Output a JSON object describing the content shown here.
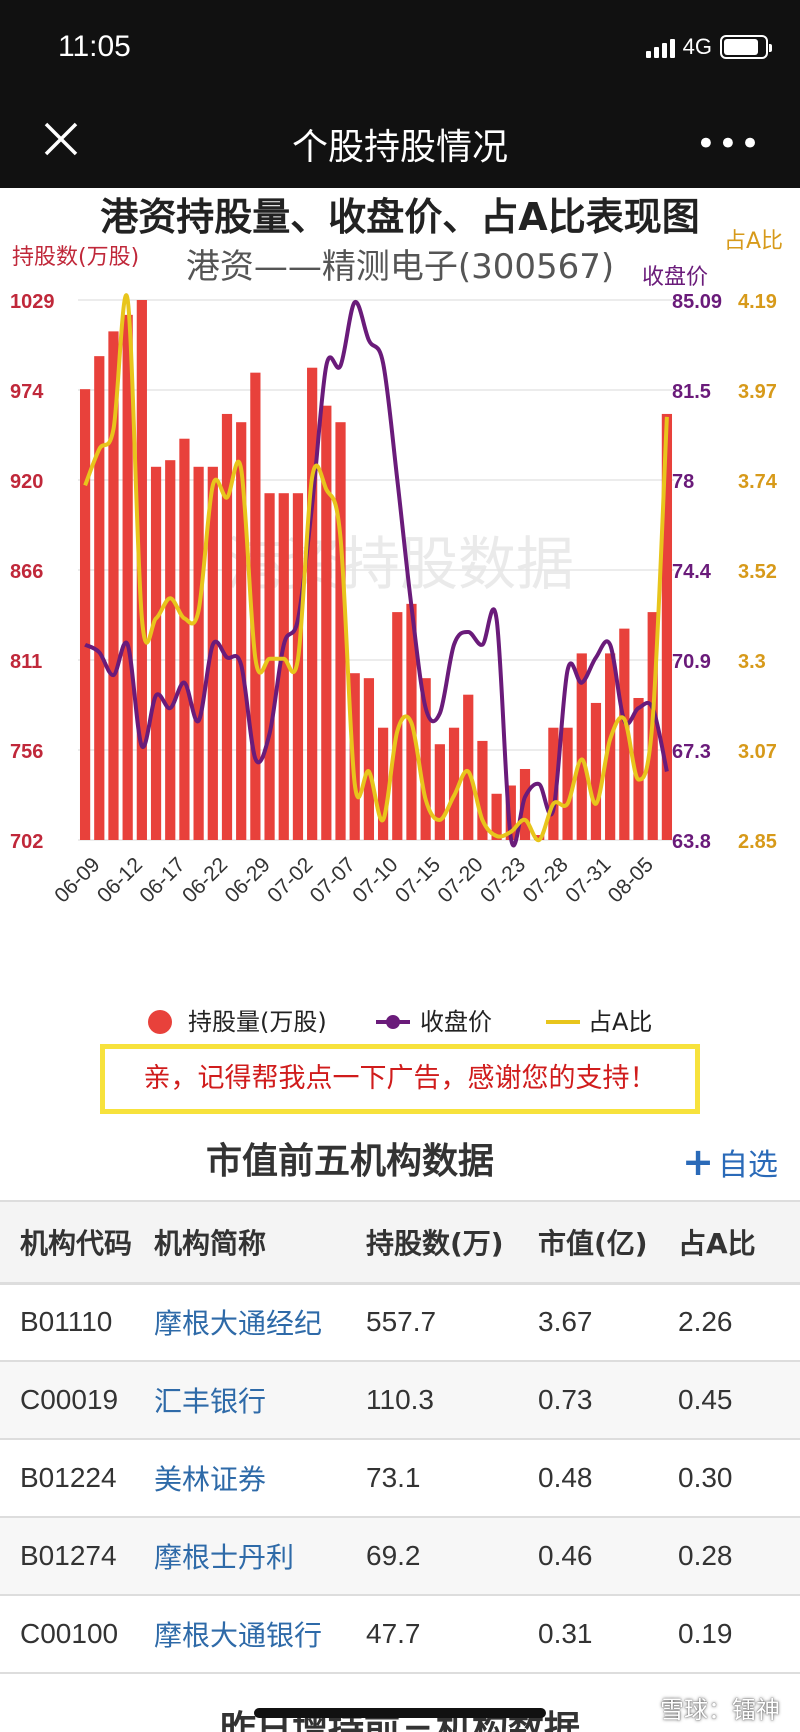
{
  "status_bar": {
    "time": "11:05",
    "network": "4G",
    "battery_level": 0.85
  },
  "nav": {
    "title": "个股持股情况",
    "close_icon": "close-icon",
    "more_icon": "more-icon"
  },
  "chart_data": {
    "type": "bar",
    "title": "港资持股量、收盘价、占A比表现图",
    "subtitle": "港资——精测电子(300567)",
    "watermark": "港资持股数据",
    "left_axis_label": "持股数(万股)",
    "right_axis_label_price": "收盘价",
    "right_axis_label_ratio": "占A比",
    "left_ticks": [
      "1029",
      "974",
      "920",
      "866",
      "811",
      "756",
      "702"
    ],
    "price_ticks": [
      "85.09",
      "81.5",
      "78",
      "74.4",
      "70.9",
      "67.3",
      "63.8"
    ],
    "ratio_ticks": [
      "4.19",
      "3.97",
      "3.74",
      "3.52",
      "3.3",
      "3.07",
      "2.85"
    ],
    "ylim_holding": [
      702,
      1029
    ],
    "ylim_price": [
      63.8,
      85.09
    ],
    "ylim_ratio": [
      2.85,
      4.19
    ],
    "x_tick_labels": [
      "06-09",
      "06-12",
      "06-17",
      "06-22",
      "06-29",
      "07-02",
      "07-07",
      "07-10",
      "07-15",
      "07-20",
      "07-23",
      "07-28",
      "07-31",
      "08-05"
    ],
    "series": [
      {
        "name": "持股量(万股)",
        "color": "#e8413b",
        "values": [
          975,
          995,
          1010,
          1020,
          1029,
          928,
          932,
          945,
          928,
          928,
          960,
          955,
          985,
          912,
          912,
          912,
          988,
          965,
          955,
          803,
          800,
          770,
          840,
          845,
          800,
          760,
          770,
          790,
          762,
          730,
          735,
          745,
          705,
          770,
          770,
          815,
          785,
          815,
          830,
          788,
          840,
          960
        ]
      },
      {
        "name": "收盘价",
        "color": "#6a1b7a",
        "values": [
          71.5,
          71.2,
          70.3,
          71.5,
          67.5,
          69.5,
          69,
          70,
          68.5,
          71.5,
          71,
          70.7,
          67,
          68,
          71.5,
          72.5,
          77,
          82.5,
          82.5,
          85,
          83.5,
          82.6,
          78,
          73,
          69,
          68.8,
          71.5,
          72,
          71.5,
          72.5,
          63.9,
          65.5,
          66,
          65,
          70.5,
          70,
          71,
          71.5,
          68.5,
          69,
          69,
          66.5
        ]
      },
      {
        "name": "占A比",
        "color": "#e8c51c",
        "values": [
          3.73,
          3.82,
          3.87,
          4.19,
          3.4,
          3.4,
          3.45,
          3.4,
          3.42,
          3.73,
          3.7,
          3.77,
          3.3,
          3.3,
          3.3,
          3.3,
          3.75,
          3.72,
          3.6,
          2.99,
          3.02,
          2.9,
          3.12,
          3.14,
          2.95,
          2.9,
          2.96,
          3.02,
          2.9,
          2.86,
          2.87,
          2.9,
          2.85,
          2.94,
          2.94,
          3.05,
          2.94,
          3.1,
          3.15,
          3.0,
          3.15,
          3.9
        ]
      }
    ],
    "legend": [
      {
        "label": "持股量(万股)",
        "color": "#e8413b",
        "symbol": "circle"
      },
      {
        "label": "收盘价",
        "color": "#6a1b7a",
        "symbol": "line-dot"
      },
      {
        "label": "占A比",
        "color": "#e8c51c",
        "symbol": "line"
      }
    ],
    "legend_position": "bottom",
    "grid": true
  },
  "ad_text": "亲，记得帮我点一下广告，感谢您的支持！",
  "institutions": {
    "title": "市值前五机构数据",
    "add_label": "自选",
    "headers": [
      "机构代码",
      "机构简称",
      "持股数(万)",
      "市值(亿)",
      "占A比"
    ],
    "rows": [
      [
        "B01110",
        "摩根大通经纪",
        "557.7",
        "3.67",
        "2.26"
      ],
      [
        "C00019",
        "汇丰银行",
        "110.3",
        "0.73",
        "0.45"
      ],
      [
        "B01224",
        "美林证券",
        "73.1",
        "0.48",
        "0.30"
      ],
      [
        "B01274",
        "摩根士丹利",
        "69.2",
        "0.46",
        "0.28"
      ],
      [
        "C00100",
        "摩根大通银行",
        "47.7",
        "0.31",
        "0.19"
      ]
    ]
  },
  "next_section_title": "昨日增持前三机构数据",
  "footer_watermark": "雪球：镭神"
}
